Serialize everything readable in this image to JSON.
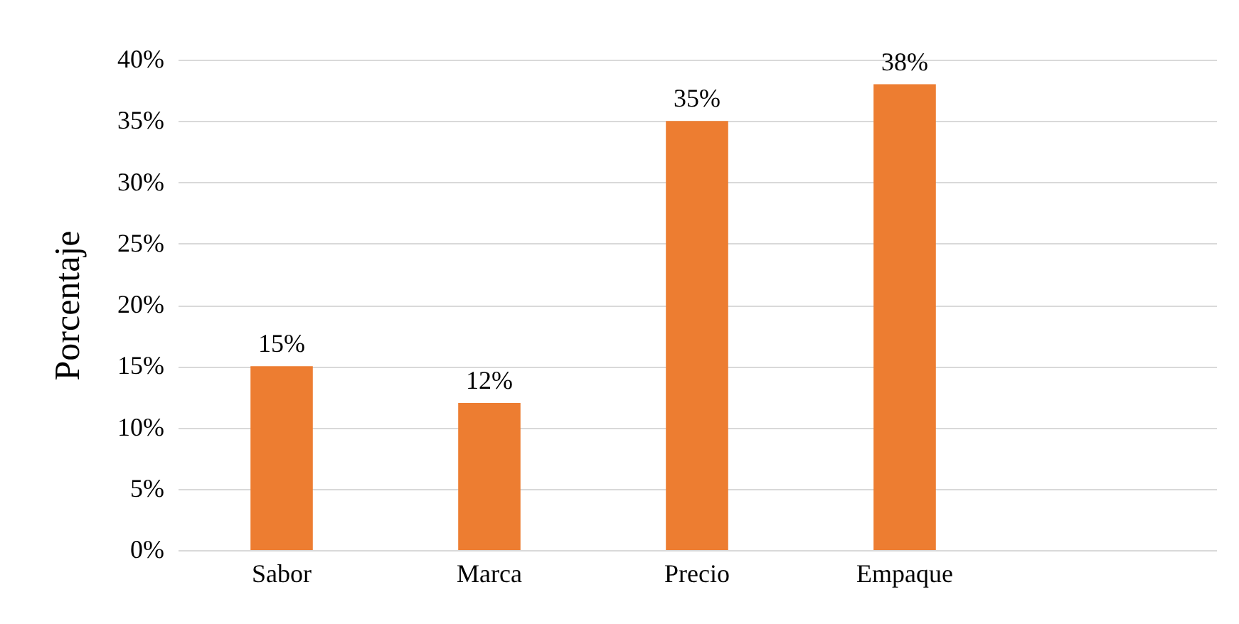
{
  "chart_data": {
    "type": "bar",
    "ylabel": "Porcentaje",
    "categories": [
      "Sabor",
      "Marca",
      "Precio",
      "Empaque",
      null
    ],
    "values": [
      15,
      12,
      35,
      38,
      null
    ],
    "value_labels": [
      "15%",
      "12%",
      "35%",
      "38%",
      null
    ],
    "color": "#ed7d31",
    "ylim": [
      0,
      40
    ],
    "yticks": [
      {
        "value": 0,
        "label": "0%"
      },
      {
        "value": 5,
        "label": "5%"
      },
      {
        "value": 10,
        "label": "10%"
      },
      {
        "value": 15,
        "label": "15%"
      },
      {
        "value": 20,
        "label": "20%"
      },
      {
        "value": 25,
        "label": "25%"
      },
      {
        "value": 30,
        "label": "30%"
      },
      {
        "value": 35,
        "label": "35%"
      },
      {
        "value": 40,
        "label": "40%"
      }
    ],
    "grid": "y"
  }
}
